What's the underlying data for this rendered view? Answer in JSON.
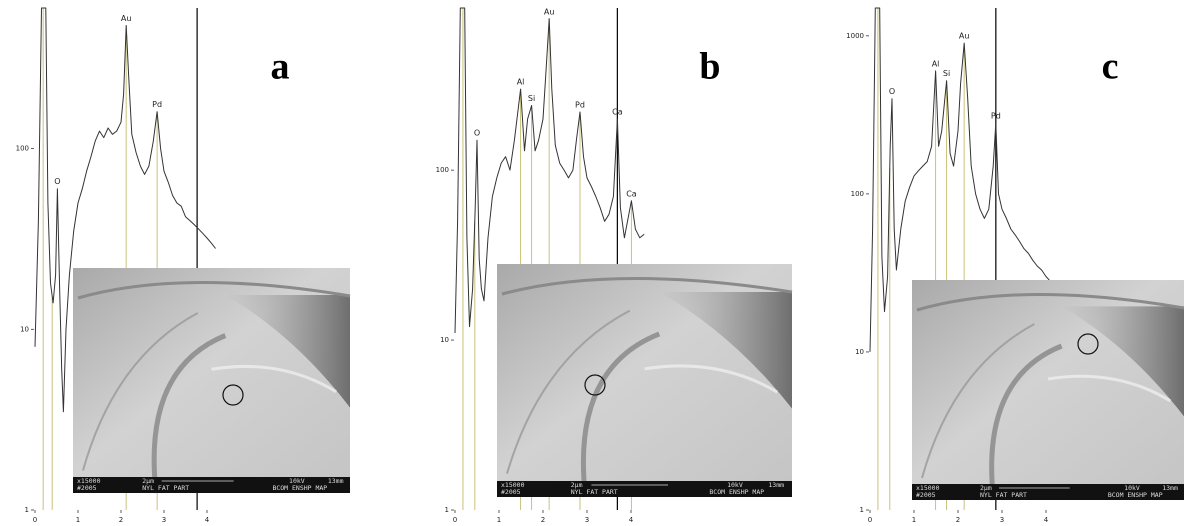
{
  "chart_data": [
    {
      "type": "line",
      "label": "a",
      "x": [
        0.0,
        0.08,
        0.15,
        0.25,
        0.3,
        0.36,
        0.42,
        0.48,
        0.52,
        0.57,
        0.62,
        0.66,
        0.72,
        0.8,
        0.9,
        1.0,
        1.1,
        1.2,
        1.3,
        1.4,
        1.5,
        1.6,
        1.7,
        1.8,
        1.9,
        2.0,
        2.06,
        2.12,
        2.18,
        2.25,
        2.35,
        2.45,
        2.55,
        2.65,
        2.75,
        2.84,
        2.92,
        3.0,
        3.1,
        3.2,
        3.3,
        3.4,
        3.5,
        3.6,
        3.7,
        3.8,
        3.9,
        4.0,
        4.1,
        4.2
      ],
      "series": [
        {
          "color": "#333333",
          "values": [
            8,
            40,
            600,
            600,
            50,
            18,
            14,
            20,
            60,
            18,
            6,
            3.5,
            10,
            20,
            35,
            50,
            60,
            75,
            90,
            110,
            125,
            115,
            130,
            120,
            125,
            140,
            200,
            480,
            250,
            120,
            95,
            80,
            72,
            80,
            110,
            160,
            100,
            75,
            65,
            55,
            50,
            48,
            42,
            40,
            38,
            36,
            34,
            32,
            30,
            28
          ]
        }
      ],
      "xlim": [
        0,
        4.4
      ],
      "ylim": [
        1,
        600
      ],
      "xticks": [
        0,
        1,
        2,
        3,
        4
      ],
      "yticks": [
        1,
        10,
        100
      ],
      "log_scale_y": true,
      "annotations": [
        {
          "text": "O",
          "x": 0.52,
          "y": 60
        },
        {
          "text": "Au",
          "x": 2.12,
          "y": 480
        },
        {
          "text": "Pd",
          "x": 2.84,
          "y": 160
        }
      ],
      "markers_x": [
        0.19,
        0.4,
        2.12,
        2.84
      ],
      "marker_color": "#c9c27a",
      "cursor_x": 3.77,
      "inset_text": [
        "x15000",
        "2µm",
        "10kV",
        "13mm",
        "#2005",
        "NYL FAT PART",
        "BCOM ENSHP MAP"
      ]
    },
    {
      "type": "line",
      "label": "b",
      "x": [
        0.0,
        0.06,
        0.12,
        0.22,
        0.27,
        0.33,
        0.4,
        0.46,
        0.5,
        0.55,
        0.6,
        0.66,
        0.75,
        0.85,
        0.95,
        1.05,
        1.15,
        1.25,
        1.35,
        1.49,
        1.58,
        1.65,
        1.74,
        1.82,
        1.9,
        2.0,
        2.06,
        2.14,
        2.2,
        2.28,
        2.38,
        2.48,
        2.58,
        2.68,
        2.76,
        2.84,
        2.92,
        3.0,
        3.1,
        3.2,
        3.3,
        3.4,
        3.5,
        3.6,
        3.69,
        3.76,
        3.85,
        3.92,
        4.01,
        4.1,
        4.2,
        4.3
      ],
      "series": [
        {
          "color": "#333333",
          "values": [
            11,
            50,
            900,
            900,
            40,
            12,
            20,
            60,
            150,
            30,
            20,
            17,
            40,
            70,
            90,
            110,
            120,
            100,
            150,
            300,
            130,
            200,
            240,
            130,
            150,
            200,
            350,
            780,
            300,
            140,
            110,
            100,
            90,
            100,
            150,
            220,
            120,
            90,
            80,
            70,
            60,
            50,
            55,
            70,
            200,
            60,
            40,
            50,
            66,
            45,
            40,
            42
          ]
        }
      ],
      "xlim": [
        0,
        4.4
      ],
      "ylim": [
        1,
        900
      ],
      "xticks": [
        0,
        1,
        2,
        3,
        4
      ],
      "yticks": [
        1,
        10,
        100
      ],
      "log_scale_y": true,
      "annotations": [
        {
          "text": "O",
          "x": 0.5,
          "y": 150
        },
        {
          "text": "Al",
          "x": 1.49,
          "y": 300
        },
        {
          "text": "Si",
          "x": 1.74,
          "y": 240
        },
        {
          "text": "Au",
          "x": 2.14,
          "y": 780
        },
        {
          "text": "Pd",
          "x": 2.84,
          "y": 220
        },
        {
          "text": "Ca",
          "x": 3.69,
          "y": 200
        },
        {
          "text": "Ca",
          "x": 4.01,
          "y": 66
        }
      ],
      "markers_x": [
        0.18,
        0.45,
        1.49,
        1.74,
        2.14,
        2.84,
        4.01
      ],
      "marker_color": "#c9c27a",
      "cursor_x": 3.69,
      "inset_text": [
        "x15000",
        "2µm",
        "10kV",
        "13mm",
        "#2005",
        "NYL FAT PART",
        "BCOM ENSHP MAP"
      ]
    },
    {
      "type": "line",
      "label": "c",
      "x": [
        0.0,
        0.06,
        0.12,
        0.22,
        0.27,
        0.33,
        0.4,
        0.46,
        0.5,
        0.55,
        0.6,
        0.7,
        0.8,
        0.9,
        1.0,
        1.1,
        1.2,
        1.3,
        1.4,
        1.49,
        1.56,
        1.63,
        1.74,
        1.82,
        1.9,
        2.0,
        2.06,
        2.14,
        2.22,
        2.3,
        2.4,
        2.5,
        2.6,
        2.7,
        2.8,
        2.86,
        2.92,
        3.0,
        3.1,
        3.2,
        3.3,
        3.4,
        3.5,
        3.6,
        3.7,
        3.8,
        3.9,
        4.0,
        4.1,
        4.2
      ],
      "series": [
        {
          "color": "#333333",
          "values": [
            10,
            60,
            1500,
            1500,
            40,
            18,
            30,
            200,
            400,
            60,
            33,
            60,
            90,
            110,
            130,
            140,
            150,
            160,
            200,
            600,
            200,
            250,
            520,
            180,
            150,
            250,
            500,
            900,
            400,
            150,
            100,
            80,
            70,
            80,
            150,
            280,
            100,
            80,
            70,
            60,
            55,
            50,
            45,
            42,
            38,
            35,
            33,
            30,
            28,
            25
          ]
        }
      ],
      "xlim": [
        0,
        4.4
      ],
      "ylim": [
        1,
        1500
      ],
      "xticks": [
        0,
        1,
        2,
        3,
        4
      ],
      "yticks": [
        1,
        10,
        100,
        1000
      ],
      "log_scale_y": true,
      "annotations": [
        {
          "text": "O",
          "x": 0.5,
          "y": 400
        },
        {
          "text": "Al",
          "x": 1.49,
          "y": 600
        },
        {
          "text": "Si",
          "x": 1.74,
          "y": 520
        },
        {
          "text": "Au",
          "x": 2.14,
          "y": 900
        },
        {
          "text": "Pd",
          "x": 2.86,
          "y": 280
        }
      ],
      "markers_x": [
        0.18,
        0.45,
        1.49,
        1.74,
        2.14
      ],
      "marker_color": "#c9c27a",
      "cursor_x": 2.86,
      "inset_text": [
        "x15000",
        "2µm",
        "10kV",
        "13mm",
        "#2005",
        "NYL FAT PART",
        "BCOM ENSHP MAP"
      ]
    }
  ]
}
